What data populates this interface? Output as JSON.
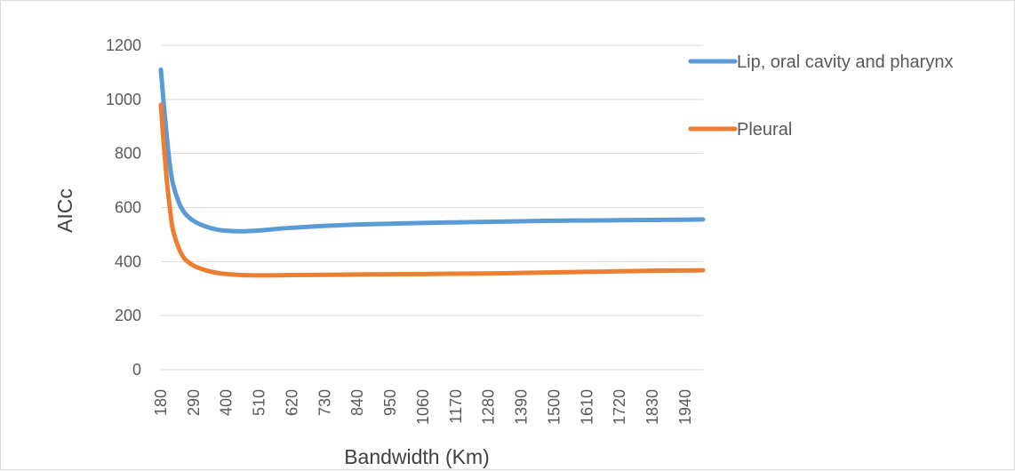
{
  "chart_data": {
    "type": "line",
    "title": "",
    "xlabel": "Bandwidth (Km)",
    "ylabel": "AICc",
    "ylim": [
      0,
      1200
    ],
    "yticks": [
      0,
      200,
      400,
      600,
      800,
      1000,
      1200
    ],
    "x_tick_labels": [
      "180",
      "290",
      "400",
      "510",
      "620",
      "730",
      "840",
      "950",
      "1060",
      "1170",
      "1280",
      "1390",
      "1500",
      "1610",
      "1720",
      "1830",
      "1940"
    ],
    "xlim": [
      180,
      2000
    ],
    "grid": true,
    "legend_position": "right",
    "series": [
      {
        "name": "Lip, oral cavity and pharynx",
        "color": "#5b9bd5",
        "x": [
          180,
          190,
          200,
          210,
          220,
          240,
          260,
          290,
          330,
          370,
          400,
          450,
          510,
          560,
          620,
          730,
          840,
          950,
          1060,
          1170,
          1280,
          1390,
          1500,
          1610,
          1720,
          1830,
          1940,
          2000
        ],
        "values": [
          1110,
          980,
          860,
          760,
          690,
          620,
          580,
          550,
          530,
          518,
          514,
          512,
          515,
          520,
          525,
          532,
          537,
          540,
          543,
          545,
          547,
          549,
          551,
          552,
          553,
          554,
          555,
          556
        ]
      },
      {
        "name": "Pleural",
        "color": "#ed7d31",
        "x": [
          180,
          190,
          200,
          210,
          220,
          240,
          260,
          290,
          330,
          370,
          400,
          450,
          510,
          560,
          620,
          730,
          840,
          950,
          1060,
          1170,
          1280,
          1390,
          1500,
          1610,
          1720,
          1830,
          1940,
          2000
        ],
        "values": [
          980,
          830,
          700,
          600,
          520,
          450,
          410,
          385,
          368,
          358,
          354,
          350,
          349,
          349,
          350,
          351,
          352,
          353,
          354,
          355,
          356,
          358,
          360,
          362,
          364,
          366,
          367,
          368
        ]
      }
    ]
  }
}
